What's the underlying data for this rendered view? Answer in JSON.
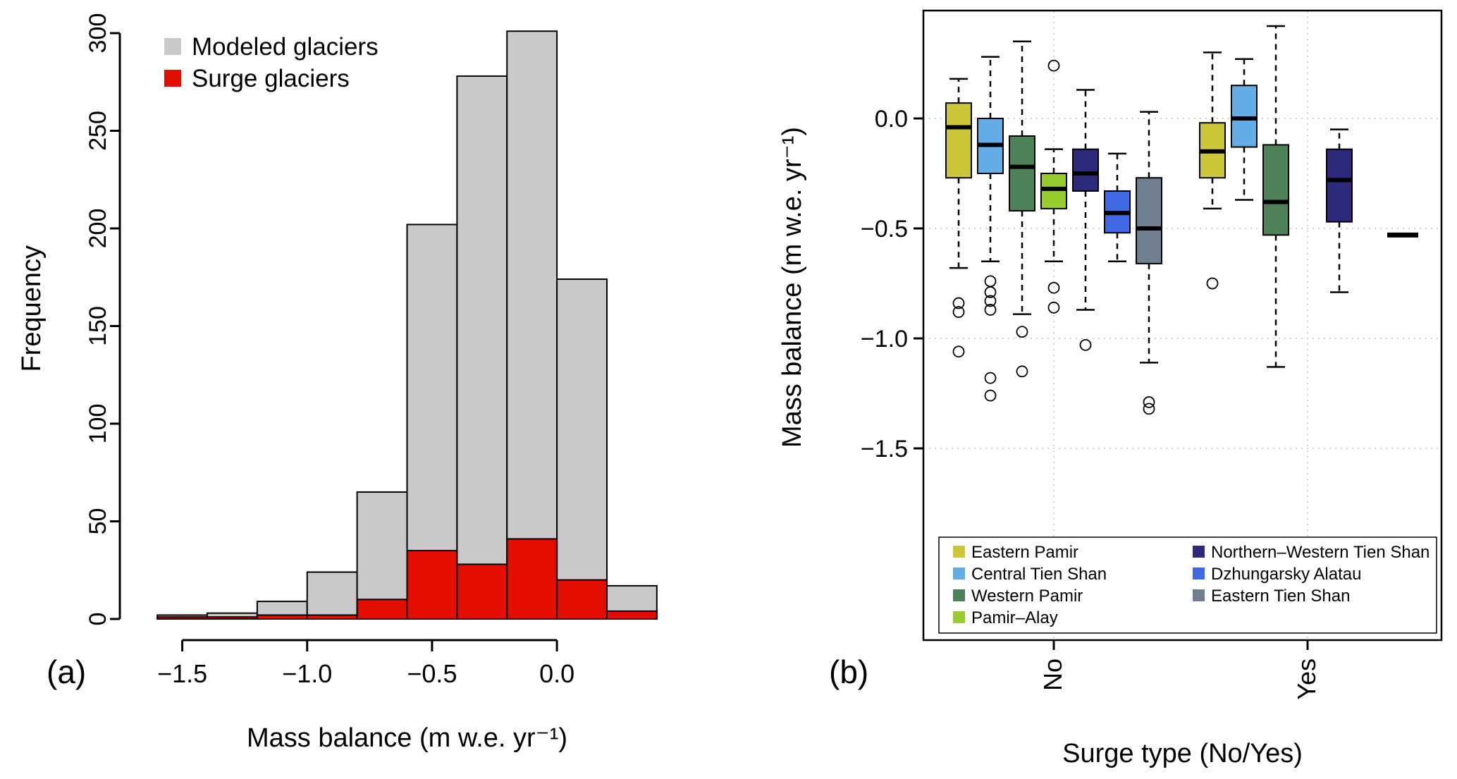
{
  "chart_data": [
    {
      "type": "bar",
      "subtype": "histogram-overlay",
      "panel_label": "(a)",
      "xlabel": "Mass balance (m w.e. yr⁻¹)",
      "ylabel": "Frequency",
      "bin_start": -1.6,
      "bin_width": 0.2,
      "series": [
        {
          "name": "Modeled glaciers",
          "color": "#C9C9C9",
          "values": [
            2,
            3,
            9,
            24,
            65,
            202,
            278,
            301,
            174,
            17
          ]
        },
        {
          "name": "Surge glaciers",
          "color": "#E30E00",
          "values": [
            1,
            1,
            2,
            2,
            10,
            35,
            28,
            41,
            20,
            4
          ]
        }
      ],
      "xticks": {
        "values": [
          -1.5,
          -1.0,
          -0.5,
          0.0
        ],
        "labels": [
          "−1.5",
          "−1.0",
          "−0.5",
          "0.0"
        ]
      },
      "yticks": {
        "values": [
          0,
          50,
          100,
          150,
          200,
          250,
          300
        ],
        "labels": [
          "0",
          "50",
          "100",
          "150",
          "200",
          "250",
          "300"
        ]
      },
      "xlim": [
        -1.75,
        0.55
      ],
      "ylim": [
        0,
        310
      ],
      "grid": false,
      "legend_position": "top-left"
    },
    {
      "type": "boxplot",
      "panel_label": "(b)",
      "xlabel": "Surge type (No/Yes)",
      "ylabel": "Mass balance (m w.e. yr⁻¹)",
      "groups": [
        "No",
        "Yes"
      ],
      "regions": [
        {
          "name": "Eastern Pamir",
          "color": "#CDC73C"
        },
        {
          "name": "Central Tien Shan",
          "color": "#63ACE5"
        },
        {
          "name": "Western Pamir",
          "color": "#4E8157"
        },
        {
          "name": "Pamir–Alay",
          "color": "#9ACD32"
        },
        {
          "name": "Northern–Western Tien Shan",
          "color": "#2E2A7A"
        },
        {
          "name": "Dzhungarsky Alatau",
          "color": "#4169E1"
        },
        {
          "name": "Eastern Tien Shan",
          "color": "#6F7F8F"
        }
      ],
      "yticks": {
        "values": [
          0.0,
          -0.5,
          -1.0,
          -1.5
        ],
        "labels": [
          "0.0",
          "−0.5",
          "−1.0",
          "−1.5"
        ]
      },
      "boxes": [
        {
          "group": "No",
          "region": "Eastern Pamir",
          "low": -0.68,
          "q1": -0.27,
          "median": -0.04,
          "q3": 0.07,
          "high": 0.18,
          "outliers": [
            -0.84,
            -0.88,
            -1.06
          ]
        },
        {
          "group": "No",
          "region": "Central Tien Shan",
          "low": -0.65,
          "q1": -0.25,
          "median": -0.12,
          "q3": 0.0,
          "high": 0.28,
          "outliers": [
            -0.74,
            -0.79,
            -0.83,
            -0.87,
            -1.18,
            -1.26
          ]
        },
        {
          "group": "No",
          "region": "Western Pamir",
          "low": -0.89,
          "q1": -0.42,
          "median": -0.22,
          "q3": -0.08,
          "high": 0.35,
          "outliers": [
            -0.97,
            -1.15
          ]
        },
        {
          "group": "No",
          "region": "Pamir–Alay",
          "low": -0.65,
          "q1": -0.41,
          "median": -0.32,
          "q3": -0.25,
          "high": -0.14,
          "outliers": [
            0.24,
            -0.77,
            -0.86
          ]
        },
        {
          "group": "No",
          "region": "Northern–Western Tien Shan",
          "low": -0.87,
          "q1": -0.33,
          "median": -0.25,
          "q3": -0.14,
          "high": 0.13,
          "outliers": [
            -1.03
          ]
        },
        {
          "group": "No",
          "region": "Dzhungarsky Alatau",
          "low": -0.65,
          "q1": -0.52,
          "median": -0.43,
          "q3": -0.33,
          "high": -0.16,
          "outliers": []
        },
        {
          "group": "No",
          "region": "Eastern Tien Shan",
          "low": -1.11,
          "q1": -0.66,
          "median": -0.5,
          "q3": -0.27,
          "high": 0.03,
          "outliers": [
            -1.29,
            -1.32
          ]
        },
        {
          "group": "Yes",
          "region": "Eastern Pamir",
          "low": -0.41,
          "q1": -0.27,
          "median": -0.15,
          "q3": -0.02,
          "high": 0.3,
          "outliers": [
            -0.75
          ]
        },
        {
          "group": "Yes",
          "region": "Central Tien Shan",
          "low": -0.37,
          "q1": -0.13,
          "median": 0.0,
          "q3": 0.15,
          "high": 0.27,
          "outliers": []
        },
        {
          "group": "Yes",
          "region": "Western Pamir",
          "low": -1.13,
          "q1": -0.53,
          "median": -0.38,
          "q3": -0.12,
          "high": 0.42,
          "outliers": []
        },
        {
          "group": "Yes",
          "region": "Northern–Western Tien Shan",
          "low": -0.79,
          "q1": -0.47,
          "median": -0.28,
          "q3": -0.14,
          "high": -0.05,
          "outliers": []
        },
        {
          "group": "Yes",
          "region": "Eastern Tien Shan",
          "low": -0.53,
          "q1": -0.53,
          "median": -0.53,
          "q3": -0.53,
          "high": -0.53,
          "outliers": []
        }
      ],
      "legend": {
        "columns": [
          [
            "Eastern Pamir",
            "Central Tien Shan",
            "Western Pamir",
            "Pamir–Alay"
          ],
          [
            "Northern–Western Tien Shan",
            "Dzhungarsky Alatau",
            "Eastern Tien Shan"
          ]
        ],
        "position": "bottom-inside"
      },
      "grid": true
    }
  ]
}
